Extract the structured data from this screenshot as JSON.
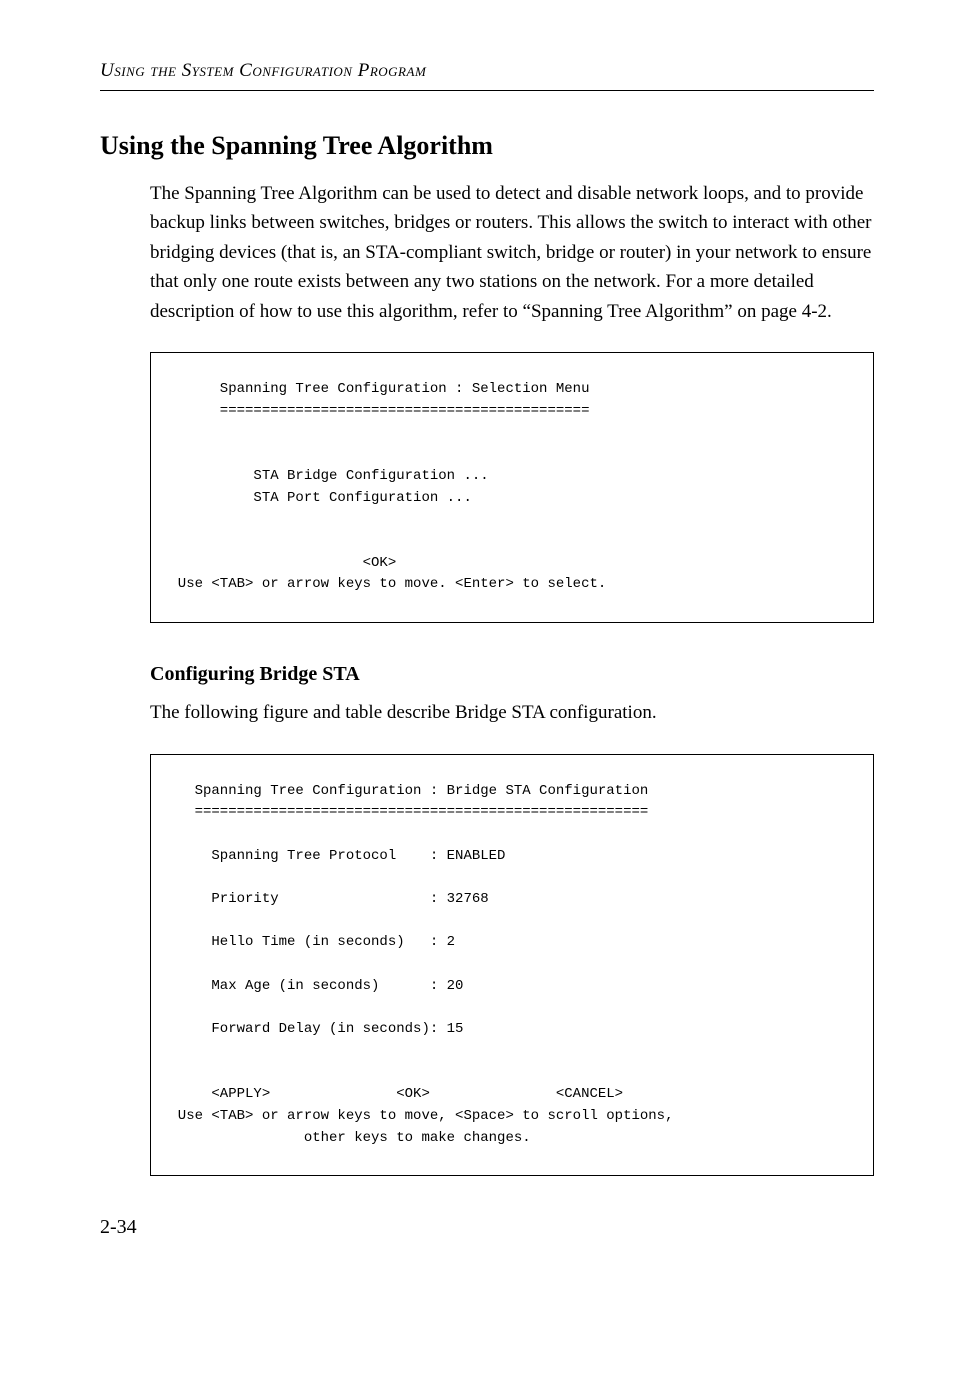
{
  "runningHeader": {
    "text_html": "U<span class='sc'>sing the</span> S<span class='sc'>ystem</span> C<span class='sc'>onfiguration</span> P<span class='sc'>rogram</span>"
  },
  "heading2": "Using the Spanning Tree Algorithm",
  "para1": "The Spanning Tree Algorithm can be used to detect and disable network loops, and to provide backup links between switches, bridges or routers. This allows the switch to interact with other bridging devices (that is, an STA-compliant switch, bridge or router) in your network to ensure that only one route exists between any two stations on the network. For a more detailed description of how to use this algorithm, refer to “Spanning Tree Algorithm” on page 4-2.",
  "terminal1": {
    "title": "       Spanning Tree Configuration : Selection Menu",
    "rule": "       ============================================",
    "item1": "           STA Bridge Configuration ...",
    "item2": "           STA Port Configuration ...",
    "ok": "                        <OK>",
    "hint": "  Use <TAB> or arrow keys to move. <Enter> to select."
  },
  "heading3": "Configuring Bridge STA",
  "para2": "The following figure and table describe Bridge STA configuration.",
  "terminal2": {
    "title": "    Spanning Tree Configuration : Bridge STA Configuration",
    "rule": "    ======================================================",
    "l1": "      Spanning Tree Protocol    : ENABLED",
    "l2": "      Priority                  : 32768",
    "l3": "      Hello Time (in seconds)   : 2",
    "l4": "      Max Age (in seconds)      : 20",
    "l5": "      Forward Delay (in seconds): 15",
    "btns": "      <APPLY>               <OK>               <CANCEL>",
    "hint1": "  Use <TAB> or arrow keys to move, <Space> to scroll options,",
    "hint2": "                 other keys to make changes."
  },
  "pageNumber": "2-34"
}
